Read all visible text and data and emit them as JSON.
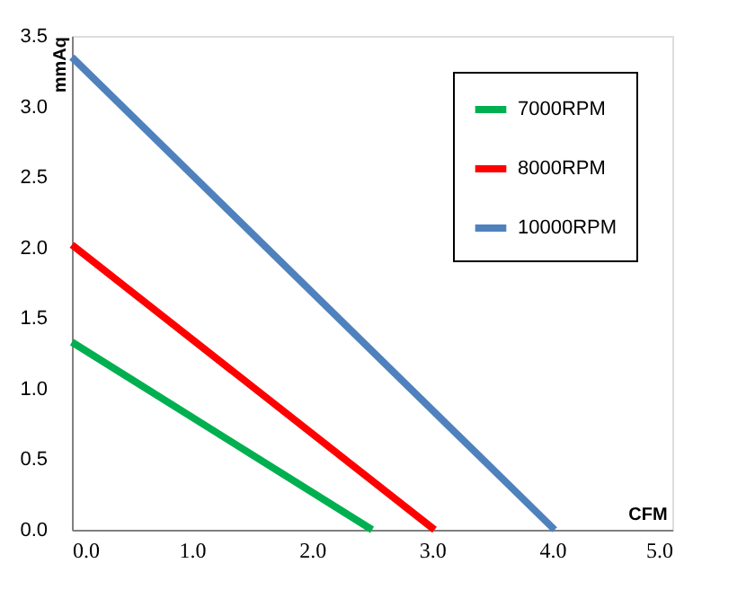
{
  "chart_data": {
    "type": "line",
    "xlabel": "CFM",
    "ylabel": "mmAq",
    "series": [
      {
        "name": "7000RPM",
        "color": "#00b050",
        "x": [
          0,
          2.5
        ],
        "values": [
          1.33,
          0
        ]
      },
      {
        "name": "8000RPM",
        "color": "#ff0000",
        "x": [
          0,
          3.02
        ],
        "values": [
          2.02,
          0
        ]
      },
      {
        "name": "10000RPM",
        "color": "#4f81bd",
        "x": [
          0,
          4.02
        ],
        "values": [
          3.35,
          0
        ]
      }
    ],
    "xlim": [
      0,
      5
    ],
    "xticks": [
      {
        "value": 0,
        "label": "0.0"
      },
      {
        "value": 1,
        "label": "1.0"
      },
      {
        "value": 2,
        "label": "2.0"
      },
      {
        "value": 3,
        "label": "3.0"
      },
      {
        "value": 4,
        "label": "4.0"
      },
      {
        "value": 5,
        "label": "5.0"
      }
    ],
    "ylim": [
      0,
      3.5
    ],
    "yticks": [
      {
        "value": 0,
        "label": "0.0"
      },
      {
        "value": 0.5,
        "label": "0.5"
      },
      {
        "value": 1,
        "label": "1.0"
      },
      {
        "value": 1.5,
        "label": "1.5"
      },
      {
        "value": 2,
        "label": "2.0"
      },
      {
        "value": 2.5,
        "label": "2.5"
      },
      {
        "value": 3,
        "label": "3.0"
      },
      {
        "value": 3.5,
        "label": "3.5"
      }
    ],
    "grid": false,
    "legend": "top right",
    "marker": "none",
    "line_style": "solid"
  }
}
